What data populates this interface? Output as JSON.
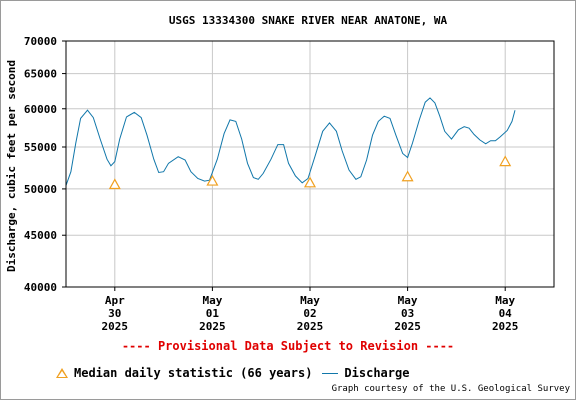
{
  "chart_data": {
    "type": "line",
    "title": "USGS 13334300 SNAKE RIVER NEAR ANATONE, WA",
    "ylabel": "Discharge, cubic feet per second",
    "xlabel": "",
    "y_scale": "log",
    "ylim": [
      40000,
      70000
    ],
    "y_ticks": [
      40000,
      45000,
      50000,
      55000,
      60000,
      65000,
      70000
    ],
    "x_range_days": [
      29.5,
      34.5
    ],
    "x_ticks": [
      {
        "day": 30,
        "lines": [
          "Apr",
          "30",
          "2025"
        ]
      },
      {
        "day": 31,
        "lines": [
          "May",
          "01",
          "2025"
        ]
      },
      {
        "day": 32,
        "lines": [
          "May",
          "02",
          "2025"
        ]
      },
      {
        "day": 33,
        "lines": [
          "May",
          "03",
          "2025"
        ]
      },
      {
        "day": 34,
        "lines": [
          "May",
          "04",
          "2025"
        ]
      }
    ],
    "grid": true,
    "series": [
      {
        "name": "Discharge",
        "color": "#1177aa",
        "points": [
          [
            29.5,
            50400
          ],
          [
            29.55,
            52000
          ],
          [
            29.6,
            55500
          ],
          [
            29.65,
            58700
          ],
          [
            29.72,
            59800
          ],
          [
            29.78,
            58800
          ],
          [
            29.85,
            56000
          ],
          [
            29.92,
            53500
          ],
          [
            29.96,
            52700
          ],
          [
            30.0,
            53200
          ],
          [
            30.05,
            56000
          ],
          [
            30.12,
            58900
          ],
          [
            30.2,
            59500
          ],
          [
            30.27,
            58800
          ],
          [
            30.33,
            56500
          ],
          [
            30.4,
            53500
          ],
          [
            30.45,
            51900
          ],
          [
            30.5,
            52000
          ],
          [
            30.55,
            53000
          ],
          [
            30.65,
            53800
          ],
          [
            30.72,
            53400
          ],
          [
            30.78,
            52000
          ],
          [
            30.85,
            51200
          ],
          [
            30.92,
            50900
          ],
          [
            30.97,
            51000
          ],
          [
            31.05,
            53500
          ],
          [
            31.12,
            56700
          ],
          [
            31.18,
            58500
          ],
          [
            31.24,
            58300
          ],
          [
            31.3,
            56000
          ],
          [
            31.36,
            53000
          ],
          [
            31.42,
            51300
          ],
          [
            31.47,
            51100
          ],
          [
            31.52,
            51800
          ],
          [
            31.6,
            53500
          ],
          [
            31.67,
            55300
          ],
          [
            31.73,
            55300
          ],
          [
            31.78,
            53000
          ],
          [
            31.85,
            51500
          ],
          [
            31.92,
            50700
          ],
          [
            31.98,
            51200
          ],
          [
            32.05,
            53800
          ],
          [
            32.13,
            57000
          ],
          [
            32.2,
            58100
          ],
          [
            32.27,
            57000
          ],
          [
            32.33,
            54500
          ],
          [
            32.4,
            52200
          ],
          [
            32.47,
            51100
          ],
          [
            32.52,
            51400
          ],
          [
            32.58,
            53400
          ],
          [
            32.64,
            56500
          ],
          [
            32.7,
            58300
          ],
          [
            32.76,
            59000
          ],
          [
            32.82,
            58700
          ],
          [
            32.88,
            56500
          ],
          [
            32.95,
            54200
          ],
          [
            33.0,
            53700
          ],
          [
            33.05,
            55500
          ],
          [
            33.12,
            58500
          ],
          [
            33.18,
            60900
          ],
          [
            33.23,
            61500
          ],
          [
            33.28,
            60800
          ],
          [
            33.33,
            59000
          ],
          [
            33.38,
            57000
          ],
          [
            33.45,
            56000
          ],
          [
            33.52,
            57200
          ],
          [
            33.58,
            57600
          ],
          [
            33.63,
            57400
          ],
          [
            33.68,
            56600
          ],
          [
            33.74,
            55900
          ],
          [
            33.8,
            55400
          ],
          [
            33.85,
            55800
          ],
          [
            33.9,
            55800
          ],
          [
            33.95,
            56300
          ],
          [
            34.02,
            57100
          ],
          [
            34.07,
            58300
          ],
          [
            34.1,
            59800
          ]
        ]
      },
      {
        "name": "Median daily statistic (66 years)",
        "color": "#f0a020",
        "marker": "triangle",
        "points": [
          [
            30.0,
            50500
          ],
          [
            31.0,
            50900
          ],
          [
            32.0,
            50700
          ],
          [
            33.0,
            51400
          ],
          [
            34.0,
            53200
          ]
        ]
      }
    ],
    "note": "---- Provisional Data Subject to Revision ----",
    "credit": "Graph courtesy of the U.S. Geological Survey"
  }
}
